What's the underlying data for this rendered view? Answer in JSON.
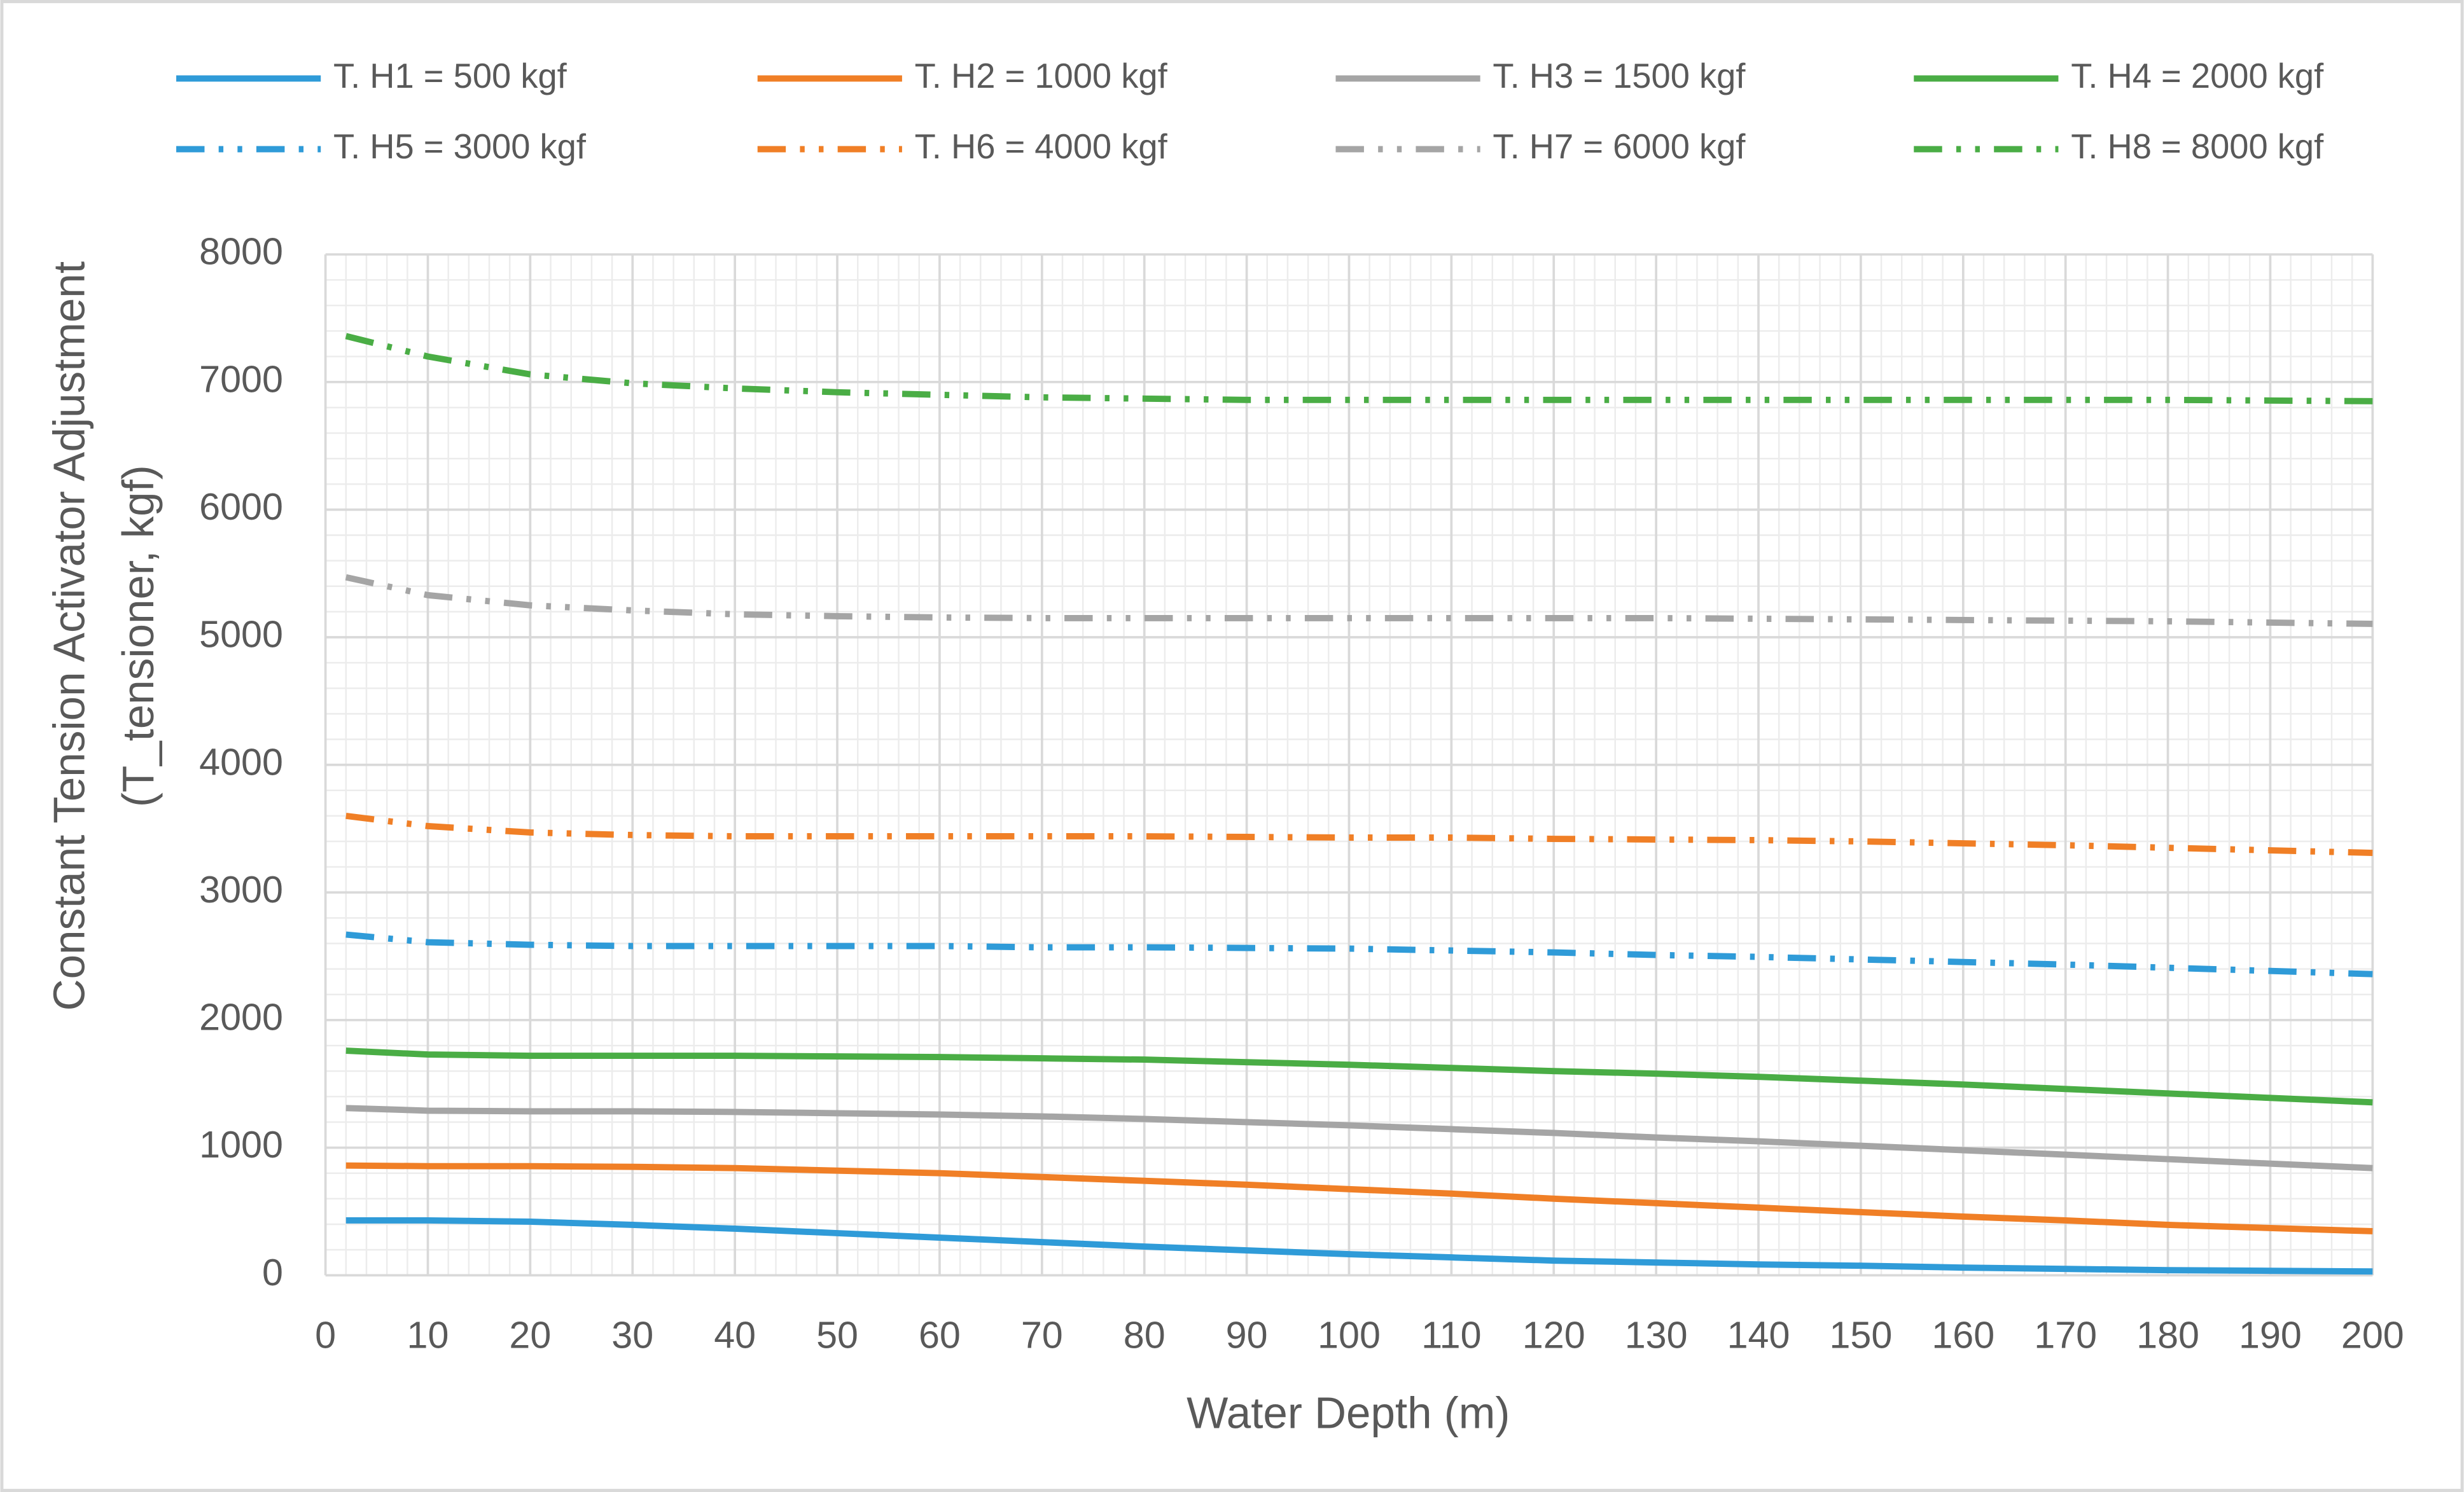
{
  "chart_data": {
    "type": "line",
    "xlabel": "Water Depth (m)",
    "ylabel": [
      "Constant Tension Activator Adjustment",
      "(T_tensioner, kgf)"
    ],
    "x": [
      2,
      10,
      20,
      30,
      40,
      50,
      60,
      70,
      80,
      90,
      100,
      110,
      120,
      130,
      140,
      150,
      160,
      170,
      180,
      190,
      200
    ],
    "series": [
      {
        "name": "T. H1 = 500 kgf",
        "color": "#2f9bd8",
        "style": "solid",
        "values": [
          430,
          430,
          420,
          395,
          365,
          330,
          295,
          260,
          225,
          195,
          165,
          140,
          115,
          100,
          85,
          75,
          60,
          50,
          40,
          35,
          30
        ]
      },
      {
        "name": "T. H2 = 1000 kgf",
        "color": "#f07f26",
        "style": "solid",
        "values": [
          860,
          855,
          855,
          850,
          840,
          820,
          800,
          770,
          740,
          710,
          675,
          640,
          600,
          565,
          530,
          495,
          460,
          430,
          395,
          370,
          345
        ]
      },
      {
        "name": "T. H3 = 1500 kgf",
        "color": "#a5a5a5",
        "style": "solid",
        "values": [
          1310,
          1290,
          1285,
          1285,
          1280,
          1270,
          1260,
          1245,
          1225,
          1200,
          1175,
          1145,
          1115,
          1080,
          1050,
          1015,
          980,
          945,
          910,
          875,
          840
        ]
      },
      {
        "name": "T. H4 = 2000 kgf",
        "color": "#4aad45",
        "style": "solid",
        "values": [
          1760,
          1730,
          1720,
          1720,
          1720,
          1715,
          1710,
          1700,
          1690,
          1670,
          1650,
          1625,
          1600,
          1580,
          1555,
          1525,
          1495,
          1460,
          1425,
          1390,
          1355
        ]
      },
      {
        "name": "T. H5 = 3000 kgf",
        "color": "#2f9bd8",
        "style": "dash-dot-dot",
        "values": [
          2670,
          2610,
          2590,
          2580,
          2580,
          2580,
          2580,
          2570,
          2570,
          2565,
          2560,
          2545,
          2530,
          2510,
          2495,
          2475,
          2455,
          2435,
          2410,
          2385,
          2360
        ]
      },
      {
        "name": "T. H6 = 4000 kgf",
        "color": "#f07f26",
        "style": "dash-dot-dot",
        "values": [
          3600,
          3520,
          3470,
          3450,
          3440,
          3440,
          3440,
          3440,
          3440,
          3435,
          3430,
          3430,
          3420,
          3415,
          3410,
          3400,
          3385,
          3370,
          3350,
          3330,
          3310
        ]
      },
      {
        "name": "T. H7 = 6000 kgf",
        "color": "#a5a5a5",
        "style": "dash-dot-dot",
        "values": [
          5470,
          5330,
          5250,
          5210,
          5180,
          5165,
          5155,
          5150,
          5150,
          5150,
          5150,
          5150,
          5150,
          5150,
          5145,
          5140,
          5135,
          5130,
          5125,
          5115,
          5105
        ]
      },
      {
        "name": "T. H8 = 8000 kgf",
        "color": "#4aad45",
        "style": "dash-dot-dot",
        "values": [
          7360,
          7200,
          7060,
          6990,
          6950,
          6920,
          6900,
          6880,
          6870,
          6860,
          6860,
          6860,
          6860,
          6860,
          6860,
          6860,
          6860,
          6860,
          6860,
          6855,
          6850
        ]
      }
    ],
    "xlim": [
      0,
      200
    ],
    "xticks": [
      0,
      10,
      20,
      30,
      40,
      50,
      60,
      70,
      80,
      90,
      100,
      110,
      120,
      130,
      140,
      150,
      160,
      170,
      180,
      190,
      200
    ],
    "ylim": [
      0,
      8000
    ],
    "yticks": [
      0,
      1000,
      2000,
      3000,
      4000,
      5000,
      6000,
      7000,
      8000
    ],
    "grid": true,
    "minor_grid": true,
    "legend": "top"
  }
}
